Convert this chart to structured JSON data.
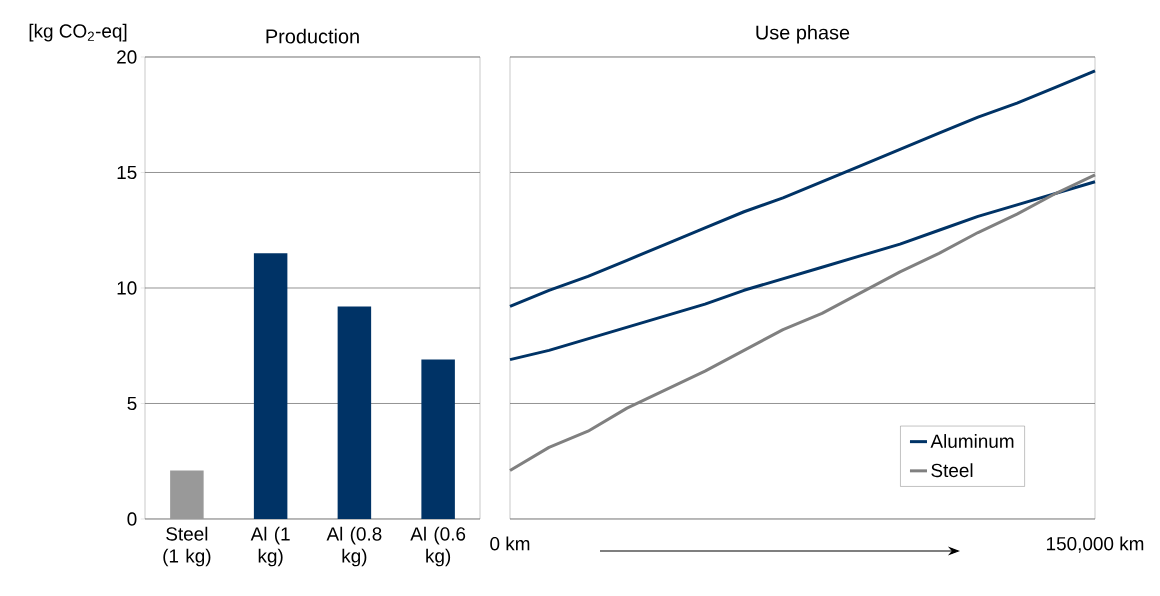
{
  "chart_data": [
    {
      "type": "bar",
      "title": "Production",
      "ylabel": "[kg CO$_{2}$-eq]",
      "categories": [
        "Steel (1 kg)",
        "Al (1 kg)",
        "Al (0.8 kg)",
        "Al (0.6 kg)"
      ],
      "values": [
        2.1,
        11.5,
        9.2,
        6.9
      ],
      "colors": [
        "#999999",
        "#003366",
        "#003366",
        "#003366"
      ],
      "ylim": [
        0,
        20
      ],
      "yticks": [
        0,
        5,
        10,
        15,
        20
      ],
      "grid": "y"
    },
    {
      "type": "line",
      "title": "Use phase",
      "legend": "bottom right",
      "grid": "y",
      "tick_labels": "x",
      "x": [
        0,
        10000,
        20000,
        30000,
        40000,
        50000,
        60000,
        70000,
        80000,
        90000,
        100000,
        110000,
        120000,
        130000,
        140000,
        150000
      ],
      "xlim": [
        0,
        150000
      ],
      "xticks": [
        {
          "value": 0,
          "label": "0 km"
        },
        {
          "value": 150000,
          "label": "150,000 km"
        }
      ],
      "ylim": [
        0,
        20
      ],
      "yticks": [
        0,
        5,
        10,
        15,
        20
      ],
      "series": [
        {
          "name": "Aluminum",
          "color": "#003366",
          "values": [
            9.2,
            9.9,
            10.5,
            11.2,
            11.9,
            12.6,
            13.3,
            13.9,
            14.6,
            15.3,
            16.0,
            16.7,
            17.4,
            18.0,
            18.7,
            19.4
          ]
        },
        {
          "color": "#003366",
          "values": [
            6.9,
            7.3,
            7.8,
            8.3,
            8.8,
            9.3,
            9.9,
            10.4,
            10.9,
            11.4,
            11.9,
            12.5,
            13.1,
            13.6,
            14.1,
            14.6
          ]
        },
        {
          "name": "Steel",
          "color": "#808080",
          "values": [
            2.1,
            3.1,
            3.8,
            4.8,
            5.6,
            6.4,
            7.3,
            8.2,
            8.9,
            9.8,
            10.7,
            11.5,
            12.4,
            13.2,
            14.1,
            14.9
          ]
        }
      ]
    }
  ]
}
